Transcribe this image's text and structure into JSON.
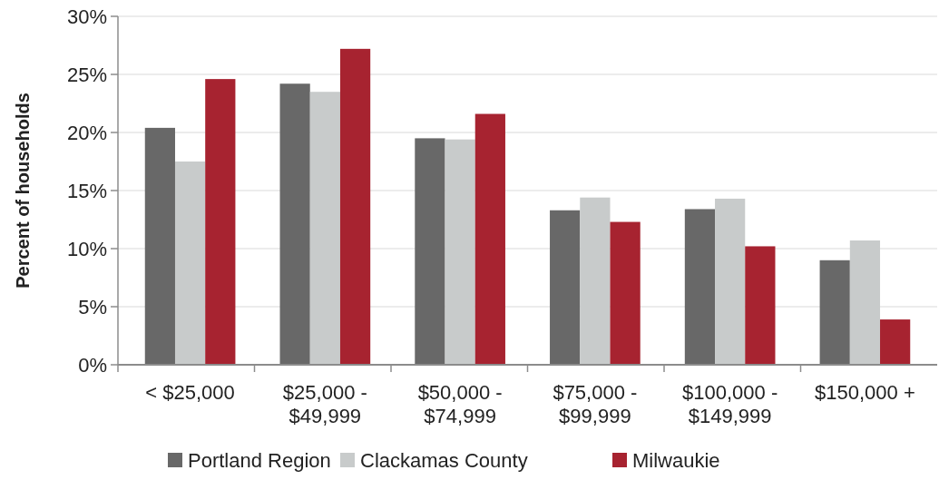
{
  "chart_data": {
    "type": "bar",
    "ylabel": "Percent of households",
    "categories": [
      "< $25,000",
      "$25,000 - $49,999",
      "$50,000 - $74,999",
      "$75,000 - $99,999",
      "$100,000 - $149,999",
      "$150,000 +"
    ],
    "series": [
      {
        "name": "Portland Region",
        "color": "#686868",
        "values": [
          20.4,
          24.2,
          19.5,
          13.3,
          13.4,
          9.0
        ]
      },
      {
        "name": "Clackamas County",
        "color": "#c8cbcb",
        "values": [
          17.5,
          23.5,
          19.4,
          14.4,
          14.3,
          10.7
        ]
      },
      {
        "name": "Milwaukie",
        "color": "#a72330",
        "values": [
          24.6,
          27.2,
          21.6,
          12.3,
          10.2,
          3.9
        ]
      }
    ],
    "ylim": [
      0,
      30
    ],
    "yticks": [
      {
        "value": 0,
        "label": "0%"
      },
      {
        "value": 5,
        "label": "5%"
      },
      {
        "value": 10,
        "label": "10%"
      },
      {
        "value": 15,
        "label": "15%"
      },
      {
        "value": 20,
        "label": "20%"
      },
      {
        "value": 25,
        "label": "25%"
      },
      {
        "value": 30,
        "label": "30%"
      }
    ],
    "grid": "y",
    "legend": "bottom"
  }
}
